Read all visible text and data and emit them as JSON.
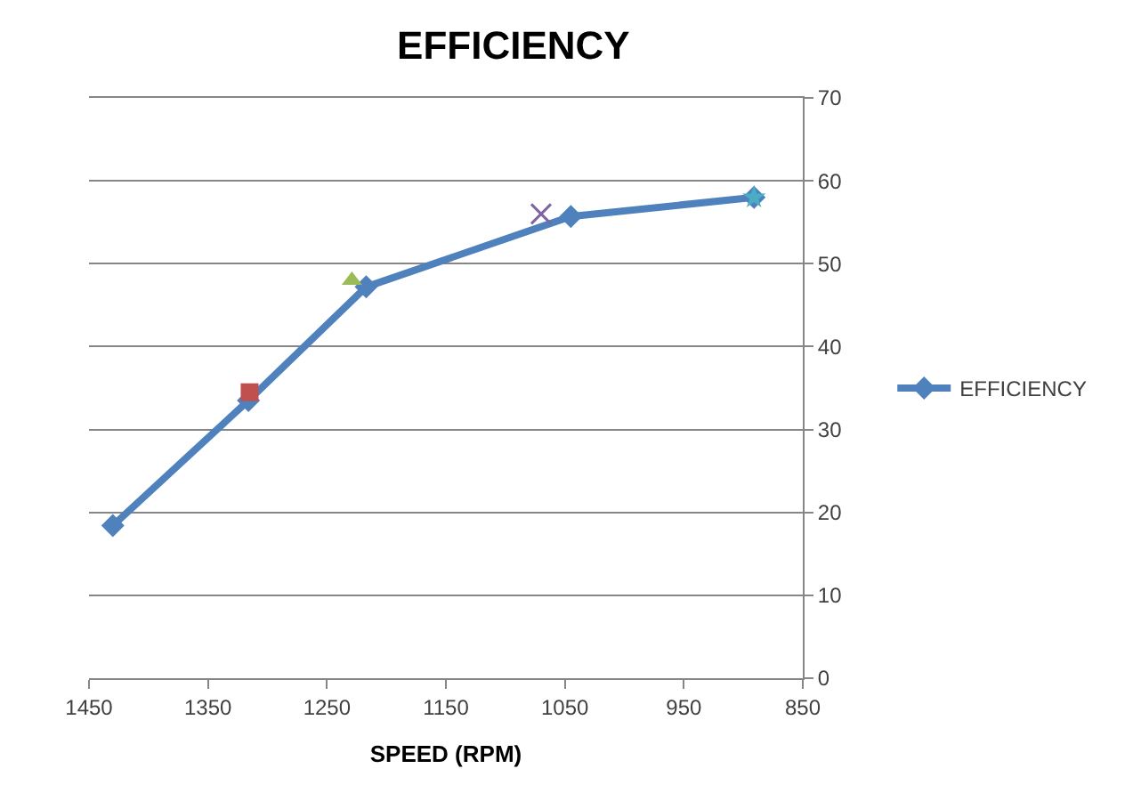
{
  "chart_data": {
    "type": "line",
    "title": "EFFICIENCY",
    "xlabel": "SPEED (RPM)",
    "xlim": [
      1450,
      850
    ],
    "xticks": [
      1450,
      1350,
      1250,
      1150,
      1050,
      950,
      850
    ],
    "ylim": [
      0,
      70
    ],
    "yticks": [
      0,
      10,
      20,
      30,
      40,
      50,
      60,
      70
    ],
    "grid": "y",
    "legend": "right",
    "series": [
      {
        "name": "EFFICIENCY",
        "color": "#4f81bd",
        "marker": "diamond",
        "x": [
          1430,
          1316,
          1217,
          1045,
          891
        ],
        "values": [
          18.4,
          33.5,
          47.2,
          55.7,
          58
        ]
      },
      {
        "type": "scatter",
        "color": "#c0504d",
        "marker": "square",
        "x": [
          1315
        ],
        "values": [
          34.5
        ]
      },
      {
        "type": "scatter",
        "color": "#9bbb59",
        "marker": "triangle",
        "x": [
          1229
        ],
        "values": [
          48
        ]
      },
      {
        "type": "scatter",
        "color": "#8064a2",
        "marker": "cross",
        "x": [
          1070
        ],
        "values": [
          56
        ]
      },
      {
        "type": "scatter",
        "color": "#4bacc6",
        "marker": "star",
        "x": [
          891
        ],
        "values": [
          58
        ]
      }
    ]
  }
}
